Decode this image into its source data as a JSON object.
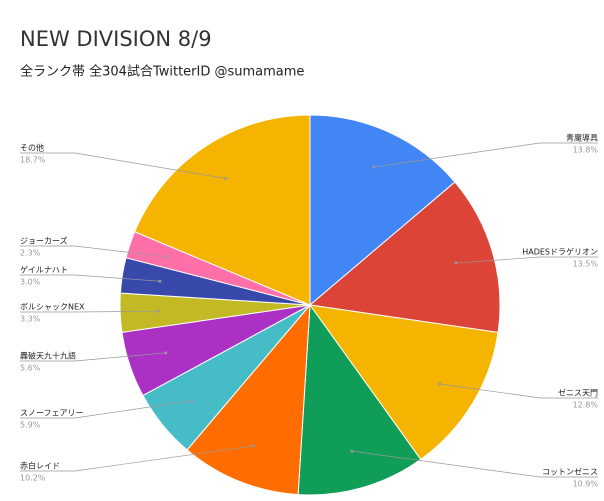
{
  "chart_data": {
    "type": "pie",
    "title": "NEW DIVISION 8/9",
    "subtitle": "全ランク帯 全304試合TwitterID @sumamame",
    "categories": [
      "青魔導具",
      "HADESドラゲリオン",
      "ゼニス天門",
      "コットンゼニス",
      "赤白レイド",
      "スノーフェアリー",
      "轟破天九十九語",
      "ボルシャックNEX",
      "ゲイルナハト",
      "ジョーカーズ",
      "その他"
    ],
    "values": [
      13.8,
      13.5,
      12.8,
      10.9,
      10.2,
      5.9,
      5.6,
      3.3,
      3.0,
      2.3,
      18.7
    ],
    "value_labels": [
      "13.8%",
      "13.5%",
      "12.8%",
      "10.9%",
      "10.2%",
      "5.9%",
      "5.6%",
      "3.3%",
      "3.0%",
      "2.3%",
      "18.7%"
    ],
    "colors": [
      "#4285f4",
      "#db4437",
      "#f4b400",
      "#0f9d58",
      "#ff6d00",
      "#46bdc6",
      "#ab30c4",
      "#c2b924",
      "#3949ab",
      "#ff6fa8",
      "#f4b400"
    ]
  }
}
